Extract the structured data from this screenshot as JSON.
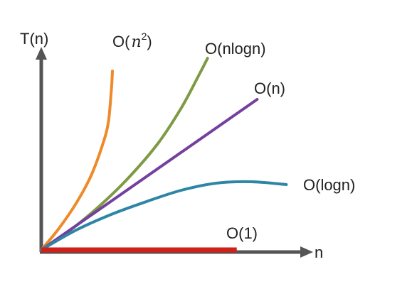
{
  "chart_data": {
    "type": "line",
    "title": "",
    "xlabel": "n",
    "ylabel": "T(n)",
    "grid": false,
    "legend": "none",
    "series": [
      {
        "name": "O(n²)",
        "label_prefix": "O(",
        "label_var": "n",
        "label_sup": "2",
        "label_suffix": ")",
        "color": "#EE8A2A",
        "points": [
          [
            0.0,
            0.0
          ],
          [
            0.3,
            0.15
          ],
          [
            0.6,
            0.33
          ],
          [
            0.85,
            0.52
          ],
          [
            1.05,
            0.74
          ],
          [
            1.15,
            0.9
          ],
          [
            1.2,
            1.12
          ],
          [
            1.22,
            1.26
          ]
        ]
      },
      {
        "name": "O(nlogn)",
        "label": "O(nlogn)",
        "color": "#7E9A43",
        "points": [
          [
            0.0,
            0.0
          ],
          [
            0.5,
            0.14
          ],
          [
            1.0,
            0.31
          ],
          [
            1.5,
            0.51
          ],
          [
            2.0,
            0.75
          ],
          [
            2.4,
            1.0
          ],
          [
            2.7,
            1.23
          ],
          [
            2.85,
            1.35
          ]
        ]
      },
      {
        "name": "O(n)",
        "label": "O(n)",
        "color": "#7340A0",
        "points": [
          [
            0.0,
            0.0
          ],
          [
            3.7,
            1.06
          ]
        ]
      },
      {
        "name": "O(logn)",
        "label": "O(logn)",
        "color": "#2E86A5",
        "points": [
          [
            0.0,
            0.0
          ],
          [
            0.6,
            0.14
          ],
          [
            1.2,
            0.25
          ],
          [
            1.8,
            0.34
          ],
          [
            2.4,
            0.42
          ],
          [
            3.0,
            0.47
          ],
          [
            3.6,
            0.48
          ],
          [
            4.2,
            0.46
          ]
        ]
      },
      {
        "name": "O(1)",
        "label": "O(1)",
        "color": "#D0201A",
        "points": [
          [
            0.0,
            0.0
          ],
          [
            3.35,
            0.0
          ]
        ]
      }
    ]
  },
  "colors": {
    "axis": "#555555",
    "text": "#222222"
  }
}
